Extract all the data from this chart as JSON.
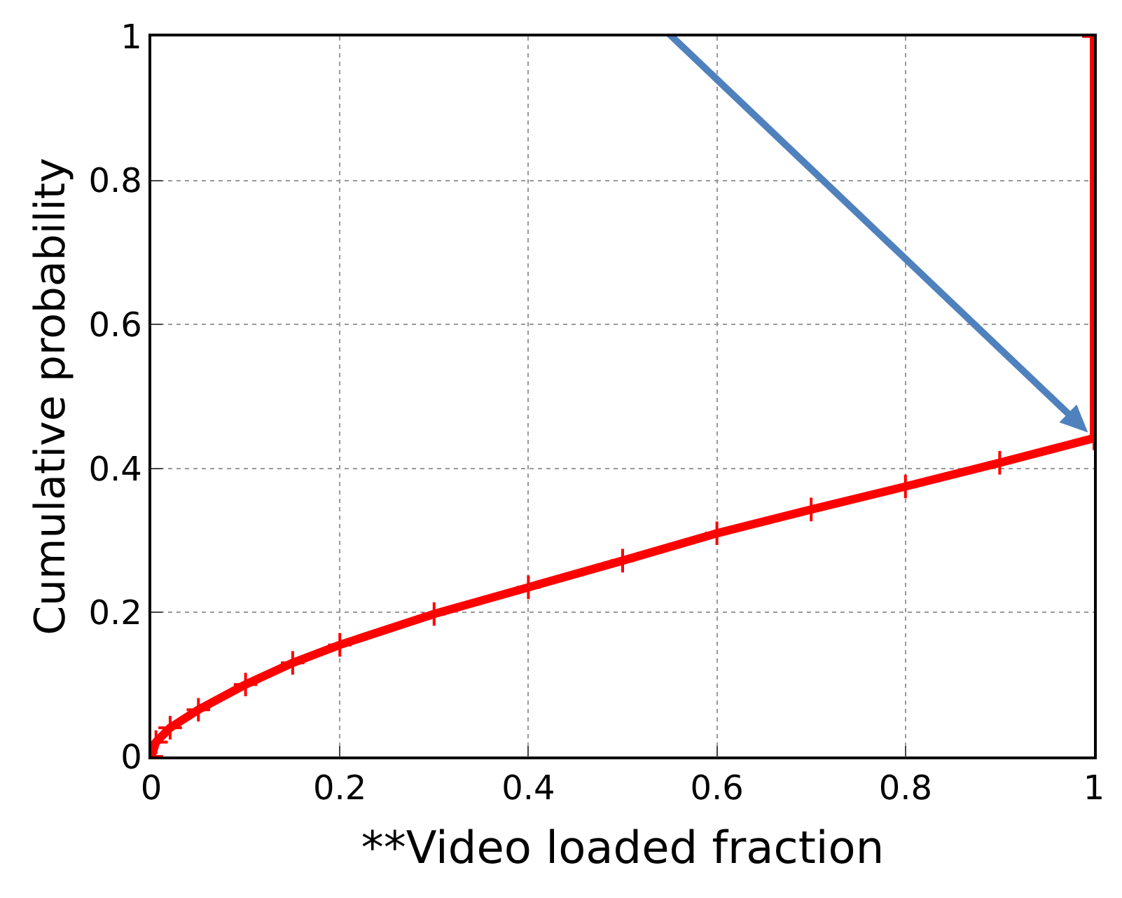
{
  "chart_data": {
    "type": "line",
    "xlabel": "**Video loaded fraction",
    "ylabel": "Cumulative probability",
    "x": [
      0,
      0.005,
      0.02,
      0.05,
      0.1,
      0.15,
      0.2,
      0.3,
      0.4,
      0.5,
      0.6,
      0.7,
      0.8,
      0.9,
      1,
      1
    ],
    "series": [
      {
        "color": "#ff0000",
        "values": [
          0,
          0.02,
          0.04,
          0.065,
          0.1,
          0.13,
          0.155,
          0.198,
          0.235,
          0.272,
          0.31,
          0.343,
          0.375,
          0.408,
          0.442,
          1
        ]
      }
    ],
    "xlim": [
      0,
      1
    ],
    "ylim": [
      0,
      1
    ],
    "xticks": [
      0,
      0.2,
      0.4,
      0.6,
      0.8,
      1
    ],
    "yticks": [
      0,
      0.2,
      0.4,
      0.6,
      0.8,
      1
    ],
    "grid": true,
    "marker": "cross",
    "line_style": "solid",
    "legend": false
  }
}
